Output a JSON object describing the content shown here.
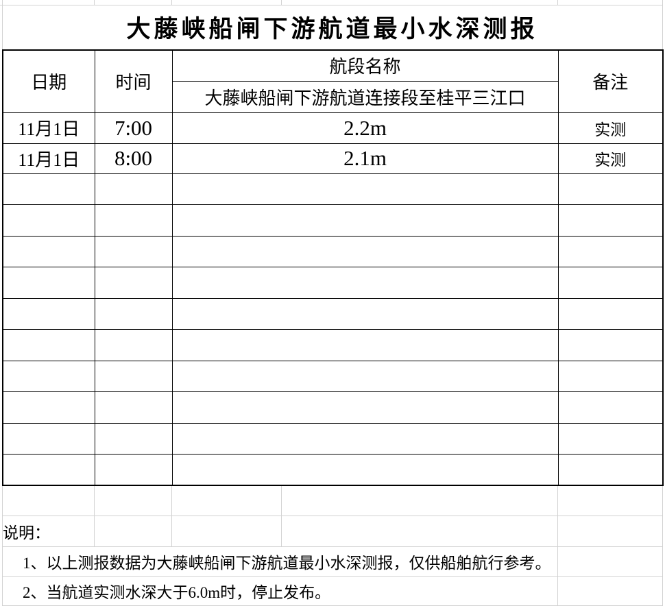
{
  "sheet": {
    "title": "大藤峡船闸下游航道最小水深测报",
    "table": {
      "col_date": "日期",
      "col_time": "时间",
      "col_segment": "航段名称",
      "segment_name": "大藤峡船闸下游航道连接段至桂平三江口",
      "col_remark": "备注",
      "rows": [
        {
          "date": "11月1日",
          "time": "7:00",
          "depth": "2.2m",
          "remark": "实测"
        },
        {
          "date": "11月1日",
          "time": "8:00",
          "depth": "2.1m",
          "remark": "实测"
        }
      ],
      "empty_row_count": 10
    },
    "notes": {
      "label": "说明：",
      "item1": "1、以上测报数据为大藤峡船闸下游航道最小水深测报，仅供船舶航行参考。",
      "item2": "2、当航道实测水深大于6.0m时，停止发布。"
    },
    "colors": {
      "border": "#000000",
      "gridline": "#d2d2d2",
      "text": "#000000",
      "background": "#ffffff"
    }
  }
}
